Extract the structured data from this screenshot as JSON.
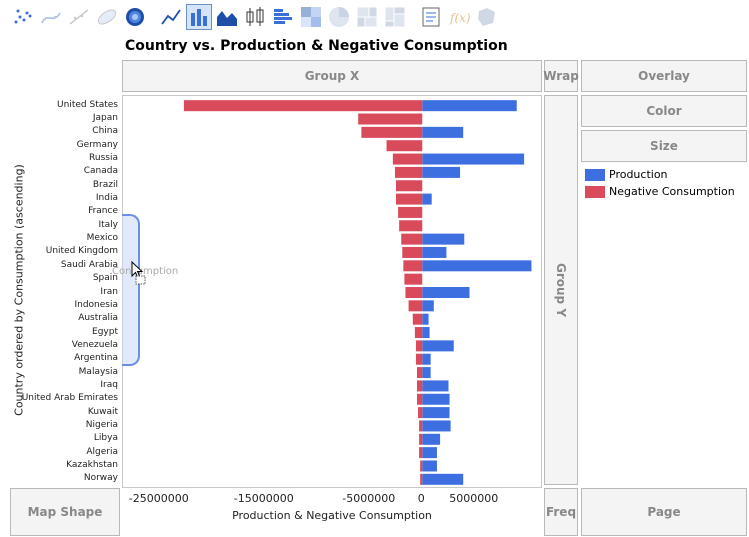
{
  "toolbar": {
    "icons": [
      "points-icon",
      "smoother-icon",
      "line-of-fit-icon",
      "ellipse-icon",
      "contour-icon",
      "line-chart-icon",
      "bar-chart-icon",
      "area-chart-icon",
      "box-plot-icon",
      "histogram-icon",
      "heatmap-icon",
      "pie-chart-icon",
      "treemap-icon",
      "mosaic-icon",
      "caption-box-icon",
      "formula-icon",
      "map-shapes-icon"
    ],
    "active_icon": "bar-chart-icon"
  },
  "title": "Country vs. Production & Negative Consumption",
  "zones": {
    "group_x": "Group X",
    "wrap": "Wrap",
    "overlay": "Overlay",
    "color": "Color",
    "size": "Size",
    "group_y": "Group Y",
    "map_shape": "Map Shape",
    "freq": "Freq",
    "page": "Page"
  },
  "drag_ghost_text": "Consumption",
  "colors": {
    "production": "#3e6fe0",
    "negative_consumption": "#d94a5a",
    "handle": "#6b8fe3"
  },
  "chart_data": {
    "type": "bar",
    "orientation": "horizontal",
    "xlabel": "Production & Negative Consumption",
    "ylabel": "Country ordered by Consumption (ascending)",
    "xlim": [
      -28500000,
      11500000
    ],
    "xticks": [
      -25000000,
      -15000000,
      -5000000,
      0,
      5000000
    ],
    "xtick_labels": [
      "-25000000",
      "-15000000",
      "-5000000",
      "0",
      "5000000"
    ],
    "categories": [
      "United States",
      "Japan",
      "China",
      "Germany",
      "Russia",
      "Canada",
      "Brazil",
      "India",
      "France",
      "Italy",
      "Mexico",
      "United Kingdom",
      "Saudi Arabia",
      "Spain",
      "Iran",
      "Indonesia",
      "Australia",
      "Egypt",
      "Venezuela",
      "Argentina",
      "Malaysia",
      "Iraq",
      "United Arab Emirates",
      "Kuwait",
      "Nigeria",
      "Libya",
      "Algeria",
      "Kazakhstan",
      "Norway"
    ],
    "series": [
      {
        "name": "Production",
        "values": [
          9000000,
          0,
          3900000,
          0,
          9700000,
          3600000,
          0,
          900000,
          0,
          0,
          4000000,
          2300000,
          10400000,
          0,
          4500000,
          1100000,
          600000,
          700000,
          3000000,
          800000,
          800000,
          2500000,
          2600000,
          2600000,
          2700000,
          1700000,
          1400000,
          1400000,
          3900000
        ]
      },
      {
        "name": "Negative Consumption",
        "values": [
          -22700000,
          -6100000,
          -5800000,
          -3400000,
          -2800000,
          -2600000,
          -2500000,
          -2500000,
          -2300000,
          -2200000,
          -2000000,
          -1900000,
          -1800000,
          -1700000,
          -1600000,
          -1300000,
          -900000,
          -700000,
          -600000,
          -600000,
          -500000,
          -500000,
          -500000,
          -400000,
          -300000,
          -300000,
          -300000,
          -200000,
          -200000
        ]
      }
    ],
    "legend": [
      "Production",
      "Negative Consumption"
    ],
    "legend_position": "right",
    "grid": false
  }
}
